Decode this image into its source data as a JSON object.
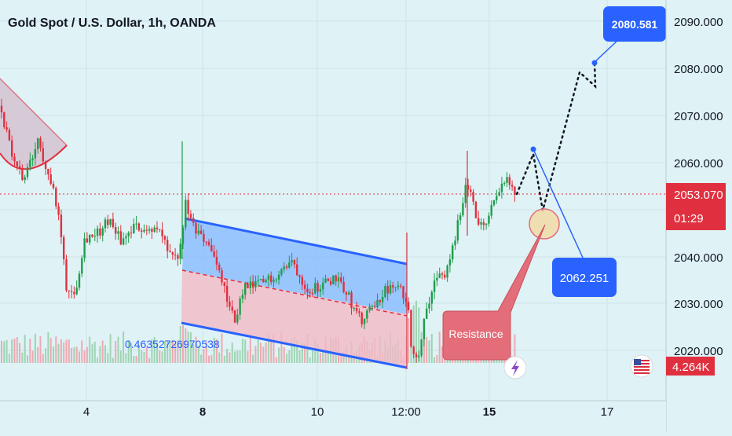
{
  "header": {
    "title": "Gold Spot / U.S. Dollar, 1h, OANDA"
  },
  "colors": {
    "background": "#dff2f5",
    "bull": "#1e9d4c",
    "bear": "#e0303f",
    "channel_line": "#2962ff",
    "channel_fill_upper": "#82b7ff",
    "channel_fill_lower": "#f2b9c6",
    "price_line": "#e0303f",
    "target_box": "#2962ff",
    "resistance_box": "#e36d79"
  },
  "chart_data": {
    "type": "candlestick",
    "symbol": "Gold Spot / U.S. Dollar",
    "timeframe": "1h",
    "source": "OANDA",
    "ylim": [
      2014,
      2094
    ],
    "y_ticks": [
      "2090.000",
      "2080.000",
      "2070.000",
      "2060.000",
      "2050.000",
      "2040.000",
      "2030.000",
      "2020.000"
    ],
    "x_ticks": [
      {
        "label": "4",
        "bold": false
      },
      {
        "label": "8",
        "bold": true
      },
      {
        "label": "10",
        "bold": false
      },
      {
        "label": "12:00",
        "bold": false
      },
      {
        "label": "15",
        "bold": true
      },
      {
        "label": "17",
        "bold": false
      }
    ],
    "current_price": "2053.070",
    "countdown": "01:29",
    "volume_label": "4.264K",
    "close_path": [
      [
        0,
        2072
      ],
      [
        14,
        2062
      ],
      [
        30,
        2056
      ],
      [
        48,
        2064
      ],
      [
        62,
        2058
      ],
      [
        75,
        2048
      ],
      [
        85,
        2033
      ],
      [
        95,
        2032
      ],
      [
        108,
        2044
      ],
      [
        125,
        2045
      ],
      [
        140,
        2048
      ],
      [
        155,
        2043
      ],
      [
        170,
        2046
      ],
      [
        190,
        2046
      ],
      [
        205,
        2045
      ],
      [
        218,
        2039
      ],
      [
        228,
        2040
      ],
      [
        236,
        2051
      ],
      [
        248,
        2045
      ],
      [
        265,
        2043
      ],
      [
        282,
        2035
      ],
      [
        298,
        2026
      ],
      [
        310,
        2033
      ],
      [
        330,
        2034
      ],
      [
        350,
        2036
      ],
      [
        372,
        2039
      ],
      [
        392,
        2033
      ],
      [
        412,
        2034
      ],
      [
        430,
        2036
      ],
      [
        445,
        2031
      ],
      [
        460,
        2026
      ],
      [
        475,
        2029
      ],
      [
        492,
        2033
      ],
      [
        508,
        2033
      ],
      [
        518,
        2031
      ],
      [
        524,
        2021
      ],
      [
        532,
        2018
      ],
      [
        542,
        2029
      ],
      [
        555,
        2035
      ],
      [
        570,
        2037
      ],
      [
        580,
        2044
      ],
      [
        590,
        2053
      ],
      [
        598,
        2056
      ],
      [
        606,
        2048
      ],
      [
        618,
        2046
      ],
      [
        628,
        2051
      ],
      [
        636,
        2055
      ],
      [
        646,
        2056
      ],
      [
        656,
        2053
      ]
    ],
    "annotations": {
      "target_high": "2080.581",
      "target_mid": "2062.251",
      "resistance_label": "Resistance",
      "channel_ratio": "0.46352726970538"
    }
  }
}
